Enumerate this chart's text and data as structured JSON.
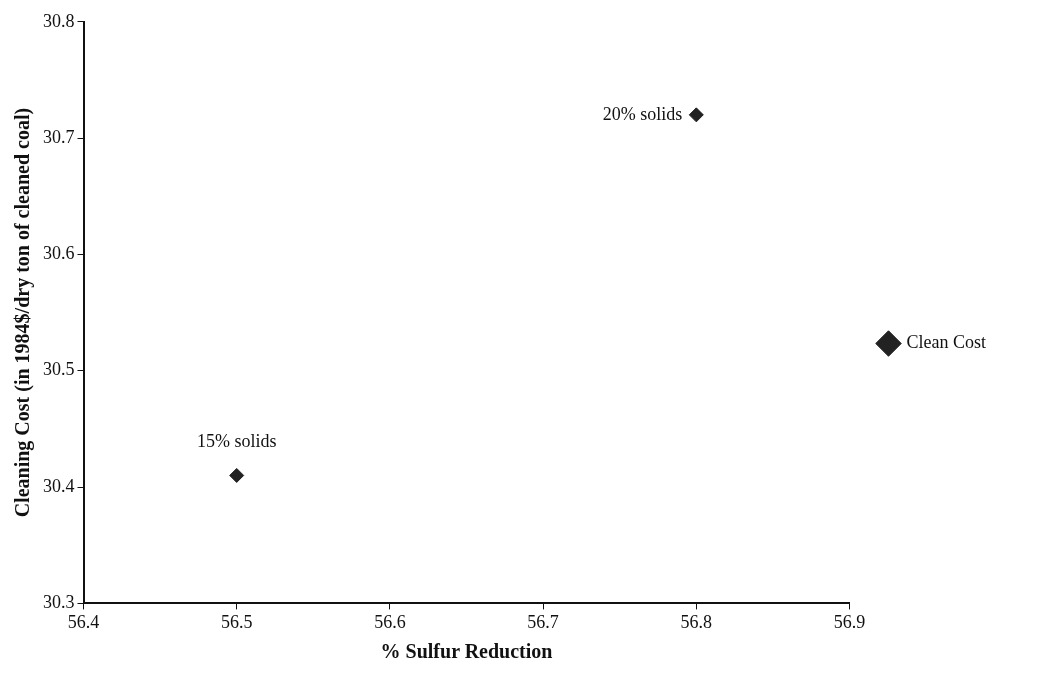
{
  "chart_data": {
    "type": "scatter",
    "xlabel": "% Sulfur Reduction",
    "ylabel": "Cleaning Cost (in 1984$/dry ton of cleaned coal)",
    "x": [
      56.5,
      56.8
    ],
    "series": [
      {
        "name": "Clean Cost",
        "color": "#222222",
        "values": [
          30.41,
          30.72
        ]
      }
    ],
    "xlim": [
      56.4,
      56.9
    ],
    "xticks": [
      56.4,
      56.5,
      56.6,
      56.7,
      56.8,
      56.9
    ],
    "ylim": [
      30.3,
      30.8
    ],
    "yticks": [
      30.3,
      30.4,
      30.5,
      30.6,
      30.7,
      30.8
    ],
    "annotations": [
      {
        "text": "15% solids",
        "x": 56.5,
        "y": 30.41
      },
      {
        "text": "20% solids",
        "x": 56.8,
        "y": 30.72
      }
    ],
    "marker": "diamond",
    "grid": false,
    "legend": "right"
  }
}
